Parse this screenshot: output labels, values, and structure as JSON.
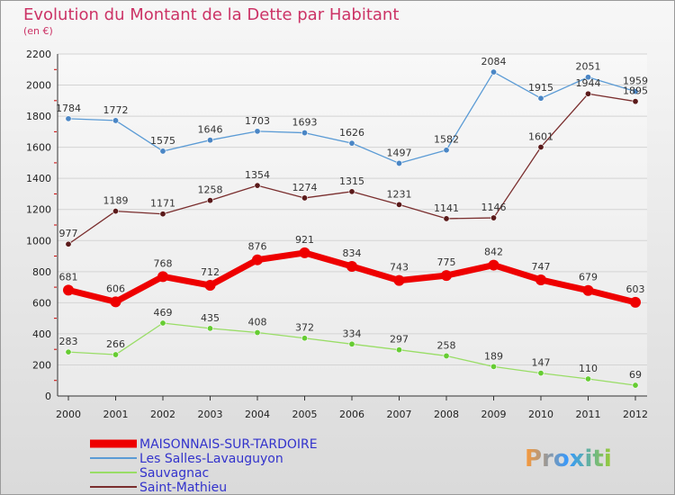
{
  "chart_data": {
    "type": "line",
    "title": "Evolution du Montant de la Dette par Habitant",
    "subtitle": "(en €)",
    "x": [
      "2000",
      "2001",
      "2002",
      "2003",
      "2004",
      "2005",
      "2006",
      "2007",
      "2008",
      "2009",
      "2010",
      "2011",
      "2012"
    ],
    "yticks": [
      "0",
      "200",
      "400",
      "600",
      "800",
      "1000",
      "1200",
      "1400",
      "1600",
      "1800",
      "2000",
      "2200"
    ],
    "ylim": [
      0,
      2200
    ],
    "grid": "horizontal",
    "legend_position": "bottom-left",
    "series": [
      {
        "name": "Les Salles-Lavauguyon",
        "color": "#5b9bd5",
        "marker": "#4a86c5",
        "width": 1.3,
        "values": [
          1784,
          1772,
          1575,
          1646,
          1703,
          1693,
          1626,
          1497,
          1582,
          2084,
          1915,
          2051,
          1959
        ]
      },
      {
        "name": "Saint-Mathieu",
        "color": "#7a2e2e",
        "marker": "#5a1a1a",
        "width": 1.3,
        "values": [
          977,
          1189,
          1171,
          1258,
          1354,
          1274,
          1315,
          1231,
          1141,
          1146,
          1601,
          1944,
          1895
        ]
      },
      {
        "name": "MAISONNAIS-SUR-TARDOIRE",
        "color": "#ee0000",
        "marker": "#ee0000",
        "width": 7,
        "values": [
          681,
          606,
          768,
          712,
          876,
          921,
          834,
          743,
          775,
          842,
          747,
          679,
          603
        ]
      },
      {
        "name": "Sauvagnac",
        "color": "#99dd66",
        "marker": "#66cc33",
        "width": 1.3,
        "values": [
          283,
          266,
          469,
          435,
          408,
          372,
          334,
          297,
          258,
          189,
          147,
          110,
          69
        ]
      }
    ],
    "legend_order": [
      "MAISONNAIS-SUR-TARDOIRE",
      "Les Salles-Lavauguyon",
      "Sauvagnac",
      "Saint-Mathieu"
    ]
  },
  "logo": {
    "text": "Proxiti"
  }
}
